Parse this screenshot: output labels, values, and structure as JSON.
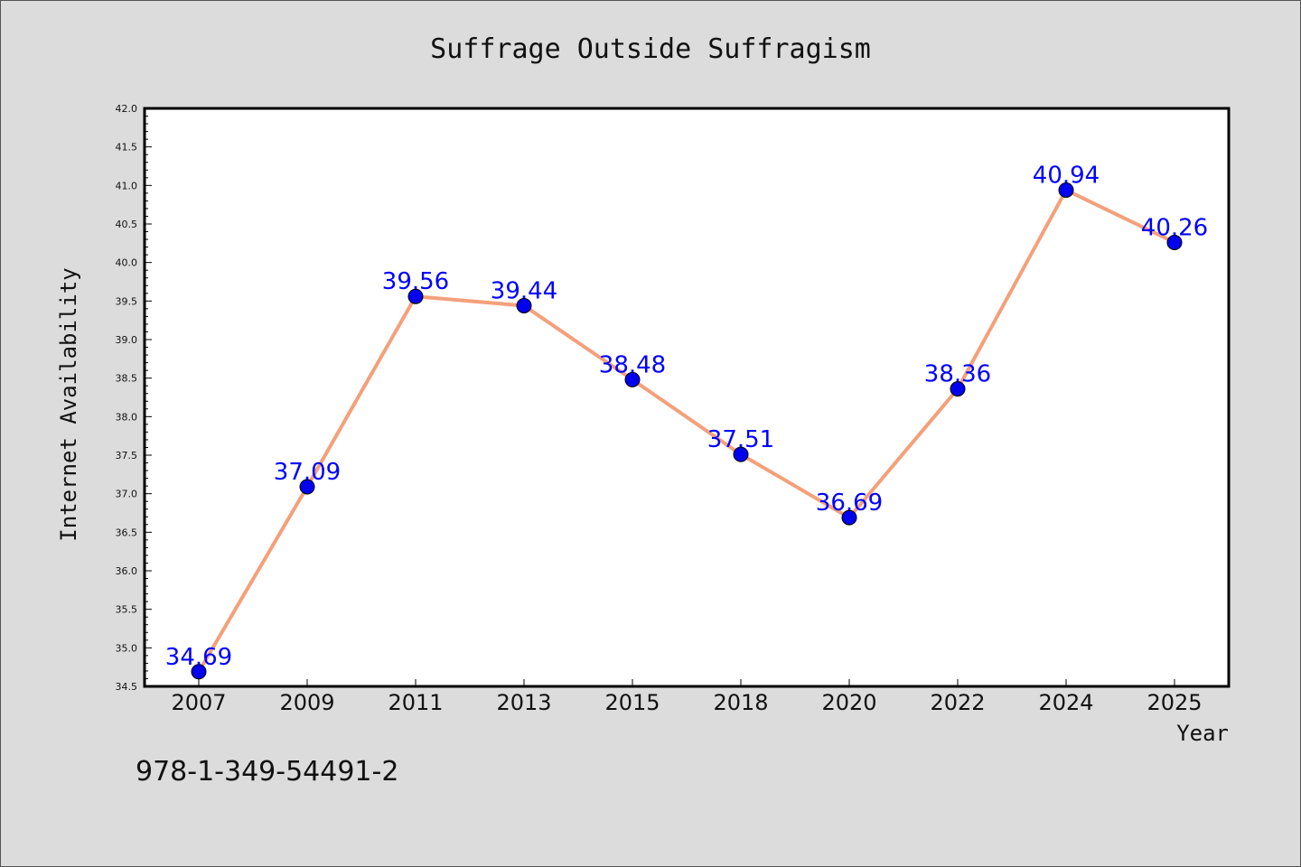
{
  "chart_data": {
    "type": "line",
    "title": "Suffrage Outside Suffragism",
    "xlabel": "Year",
    "ylabel": "Internet Availability",
    "categories": [
      "2007",
      "2009",
      "2011",
      "2013",
      "2015",
      "2018",
      "2020",
      "2022",
      "2024",
      "2025"
    ],
    "series": [
      {
        "values": [
          34.69,
          37.09,
          39.56,
          39.44,
          38.48,
          37.51,
          36.69,
          38.36,
          40.94,
          40.26
        ],
        "value_labels": [
          "34.69",
          "37.09",
          "39.56",
          "39.44",
          "38.48",
          "37.51",
          "36.69",
          "38.36",
          "40.94",
          "40.26"
        ]
      }
    ],
    "ylim": [
      34.5,
      42.0
    ],
    "yticks": [
      "34.5",
      "35.0",
      "35.5",
      "36.0",
      "36.5",
      "37.0",
      "37.5",
      "38.0",
      "38.5",
      "39.0",
      "39.5",
      "40.0",
      "40.5",
      "41.0",
      "41.5",
      "42.0"
    ],
    "grid": false,
    "legend": "none",
    "line_color": "#f4a07a",
    "marker_color": "#0000ee",
    "label_color": "#0000ff",
    "background_color": "#dcdcdc",
    "plot_background": "#ffffff"
  },
  "annotation": {
    "isbn": "978-1-349-54491-2"
  }
}
